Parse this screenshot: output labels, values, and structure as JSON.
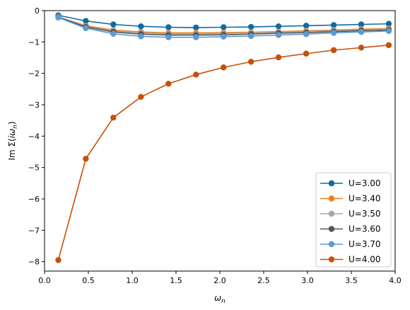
{
  "chart_data": {
    "type": "line",
    "title": "",
    "xlabel": "ω_n",
    "ylabel": "Im Σ(iω_n)",
    "xlim": [
      0.0,
      4.0
    ],
    "ylim": [
      -8.3,
      0
    ],
    "x_ticks": [
      0.0,
      0.5,
      1.0,
      1.5,
      2.0,
      2.5,
      3.0,
      3.5,
      4.0
    ],
    "x_tick_labels": [
      "0.0",
      "0.5",
      "1.0",
      "1.5",
      "2.0",
      "2.5",
      "3.0",
      "3.5",
      "4.0"
    ],
    "y_ticks": [
      0,
      -1,
      -2,
      -3,
      -4,
      -5,
      -6,
      -7,
      -8
    ],
    "y_tick_labels": [
      "0",
      "−1",
      "−2",
      "−3",
      "−4",
      "−5",
      "−6",
      "−7",
      "−8"
    ],
    "grid": false,
    "legend_position": "bottom-right",
    "x": [
      0.157,
      0.471,
      0.785,
      1.1,
      1.414,
      1.728,
      2.042,
      2.356,
      2.67,
      2.985,
      3.299,
      3.613,
      3.927
    ],
    "series": [
      {
        "name": "U=3.00",
        "color": "#0f6ba3",
        "values": [
          -0.15,
          -0.33,
          -0.44,
          -0.5,
          -0.53,
          -0.54,
          -0.53,
          -0.52,
          -0.5,
          -0.48,
          -0.46,
          -0.44,
          -0.42
        ]
      },
      {
        "name": "U=3.40",
        "color": "#f07f1f",
        "values": [
          -0.2,
          -0.48,
          -0.62,
          -0.68,
          -0.71,
          -0.71,
          -0.7,
          -0.69,
          -0.67,
          -0.64,
          -0.62,
          -0.59,
          -0.57
        ]
      },
      {
        "name": "U=3.50",
        "color": "#a6a6a6",
        "values": [
          -0.2,
          -0.5,
          -0.65,
          -0.71,
          -0.74,
          -0.74,
          -0.73,
          -0.71,
          -0.69,
          -0.66,
          -0.64,
          -0.61,
          -0.59
        ]
      },
      {
        "name": "U=3.60",
        "color": "#555555",
        "values": [
          -0.21,
          -0.52,
          -0.68,
          -0.75,
          -0.78,
          -0.78,
          -0.77,
          -0.75,
          -0.72,
          -0.7,
          -0.67,
          -0.64,
          -0.62
        ]
      },
      {
        "name": "U=3.70",
        "color": "#5a9bd4",
        "values": [
          -0.22,
          -0.56,
          -0.74,
          -0.82,
          -0.85,
          -0.85,
          -0.83,
          -0.81,
          -0.78,
          -0.75,
          -0.71,
          -0.68,
          -0.65
        ]
      },
      {
        "name": "U=4.00",
        "color": "#c8500a",
        "values": [
          -7.95,
          -4.72,
          -3.41,
          -2.75,
          -2.33,
          -2.04,
          -1.81,
          -1.63,
          -1.49,
          -1.37,
          -1.26,
          -1.18,
          -1.1
        ]
      }
    ]
  }
}
